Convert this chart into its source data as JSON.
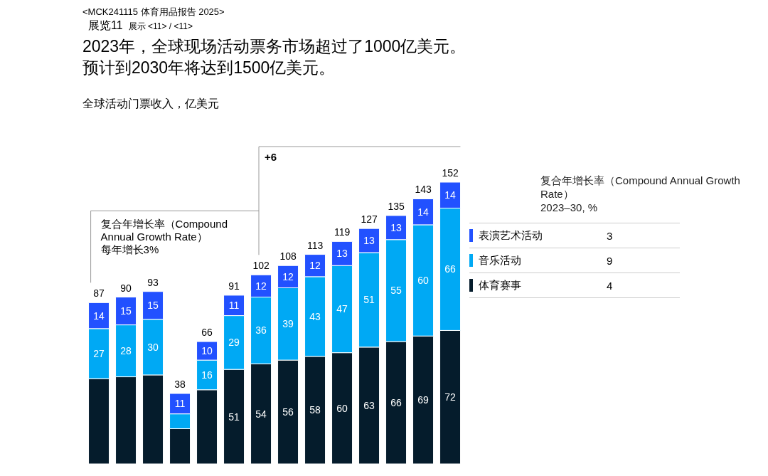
{
  "chart_data": {
    "type": "bar",
    "stacked": true,
    "title": "2023年，全球现场活动票务市场超过了1000亿美元。预计到2030年将达到1500亿美元。",
    "subtitle": "全球活动门票收入，亿美元",
    "categories": [
      null,
      null,
      null,
      null,
      null,
      null,
      null,
      null,
      null,
      null,
      null,
      null,
      null,
      null
    ],
    "series": [
      {
        "name": "体育赛事",
        "color": "#051c2c",
        "values": [
          46,
          47,
          48,
          19,
          40,
          51,
          54,
          56,
          58,
          60,
          63,
          66,
          69,
          72
        ],
        "value_labels": [
          null,
          null,
          null,
          null,
          null,
          "51",
          "54",
          "56",
          "58",
          "60",
          "63",
          "66",
          "69",
          "72"
        ]
      },
      {
        "name": "音乐活动",
        "color": "#00a9f4",
        "values": [
          27,
          28,
          30,
          8,
          16,
          29,
          36,
          39,
          43,
          47,
          51,
          55,
          60,
          66
        ],
        "value_labels": [
          "27",
          "28",
          "30",
          null,
          "16",
          "29",
          "36",
          "39",
          "43",
          "47",
          "51",
          "55",
          "60",
          "66"
        ]
      },
      {
        "name": "表演艺术活动",
        "color": "#2251ff",
        "values": [
          14,
          15,
          15,
          11,
          10,
          11,
          12,
          12,
          12,
          13,
          13,
          13,
          14,
          14
        ],
        "value_labels": [
          "14",
          "15",
          "15",
          "11",
          "10",
          "11",
          "12",
          "12",
          "12",
          "13",
          "13",
          "13",
          "14",
          "14"
        ]
      }
    ],
    "totals": [
      "87",
      "90",
      "93",
      "38",
      "66",
      "91",
      "102",
      "108",
      "113",
      "119",
      "127",
      "135",
      "143",
      "152"
    ],
    "legend": "right",
    "legend_title": "复合年增长率（Compound Annual Growth Rate）",
    "annotations": [
      "<MCK241115 体育用品报告 2025>",
      "展览11",
      "展示 <11> / <11>",
      "复合年增长率（Compound Annual Growth Rate）",
      "每年增长3%",
      "+6",
      "2023–30, %",
      "4",
      "9",
      "3"
    ]
  }
}
